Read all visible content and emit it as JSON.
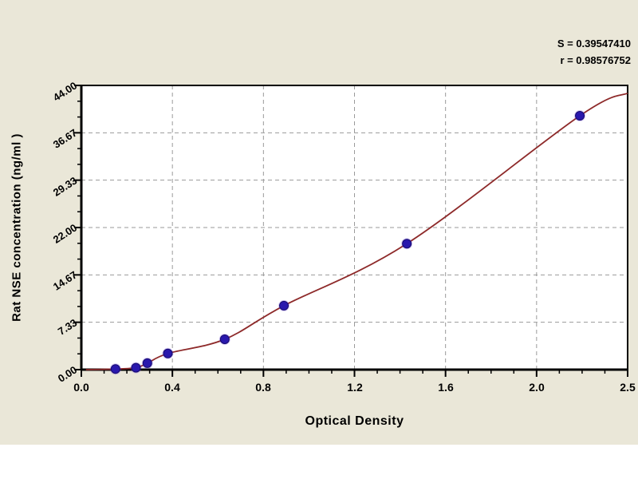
{
  "figure": {
    "background_color": "#eae7d8",
    "plot_background": "#ffffff",
    "stats": {
      "s_line": "S = 0.39547410",
      "r_line": "r = 0.98576752"
    },
    "x_axis": {
      "title": "Optical Density",
      "ticklabels": [
        "0.0",
        "0.4",
        "0.8",
        "1.2",
        "1.6",
        "2.0",
        "2.5"
      ]
    },
    "y_axis": {
      "title": "Rat NSE concentration (ng/ml )",
      "ticklabels": [
        "0.00",
        "7.33",
        "14.67",
        "22.00",
        "29.33",
        "36.67",
        "44.00"
      ]
    }
  },
  "chart_data": {
    "type": "scatter",
    "x": [
      0.15,
      0.24,
      0.29,
      0.38,
      0.63,
      0.89,
      1.43,
      2.19
    ],
    "y": [
      0.1,
      0.3,
      1.0,
      2.5,
      4.7,
      9.9,
      19.5,
      39.3
    ],
    "xlabel": "Optical Density",
    "ylabel": "Rat NSE concentration (ng/ml )",
    "x_ticks": [
      0.0,
      0.4,
      0.8,
      1.2,
      1.6,
      2.0,
      2.5
    ],
    "y_ticks": [
      0.0,
      7.33,
      14.67,
      22.0,
      29.33,
      36.67,
      44.0
    ],
    "xlim": [
      0.0,
      2.4
    ],
    "ylim": [
      0.0,
      44.0
    ],
    "grid": "dashed",
    "annotations": [
      "S = 0.39547410",
      "r = 0.98576752"
    ],
    "curve": {
      "kind": "fitted-regression-line",
      "start": [
        0.02,
        0.0
      ],
      "end": [
        2.4,
        42.8
      ]
    },
    "point_color": "#2a18ad",
    "point_halo_color": "rgba(110,70,220,0.30)",
    "line_color": "#8e2a2a",
    "grid_color": "#9a9a9a",
    "axis_color": "#000000"
  }
}
